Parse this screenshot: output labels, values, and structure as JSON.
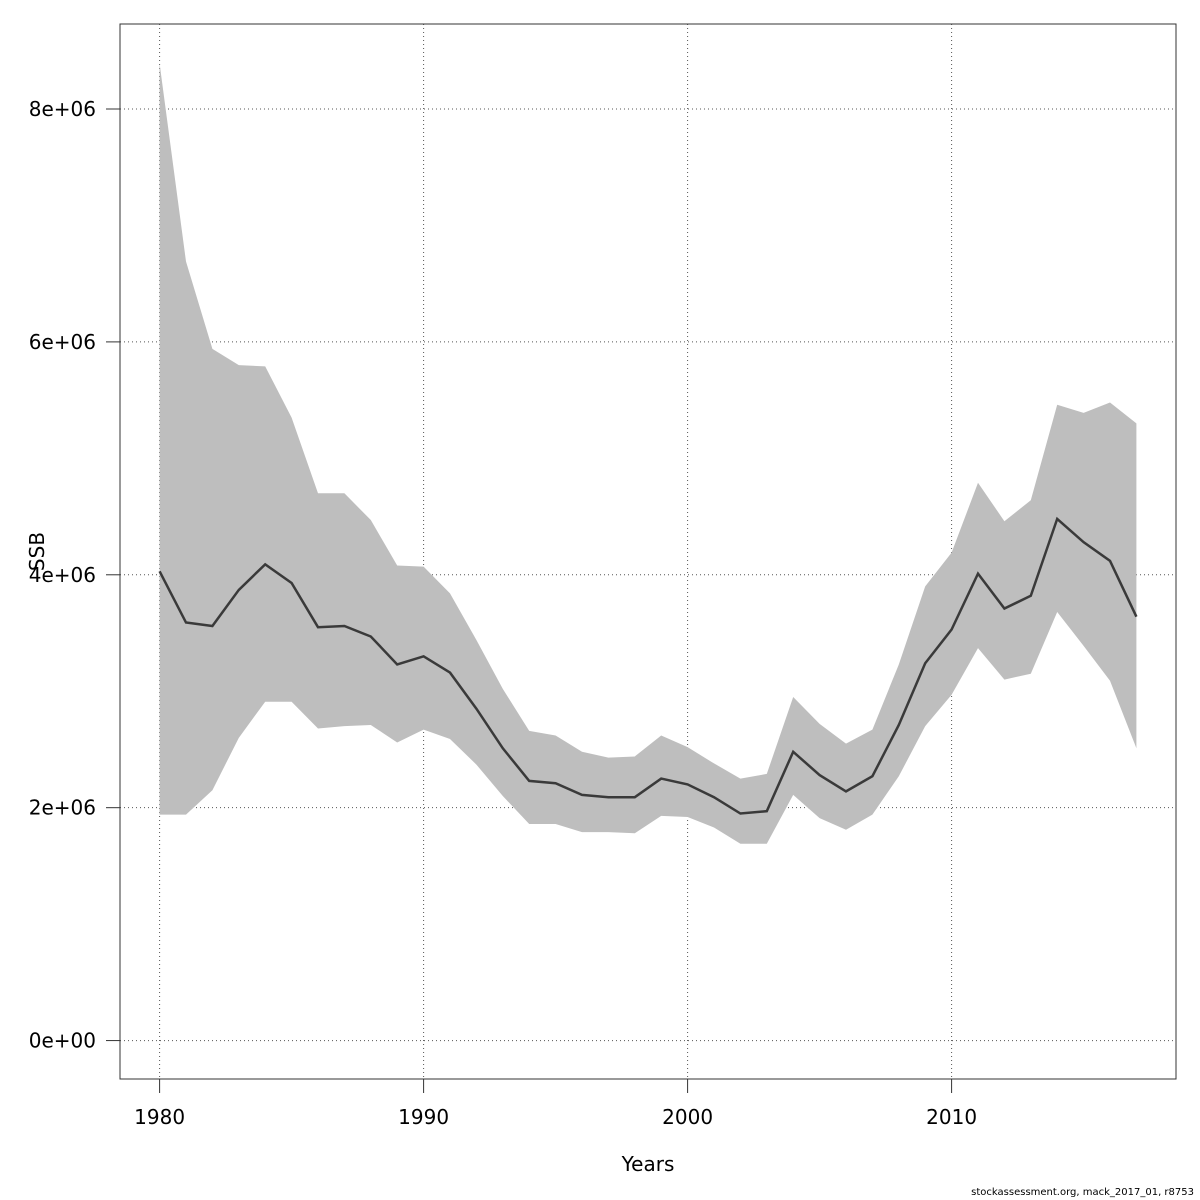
{
  "chart_data": {
    "type": "area",
    "xlabel": "Years",
    "ylabel": "SSB",
    "xlim": [
      1978.5,
      2018.5
    ],
    "ylim": [
      -330000,
      8730000
    ],
    "x_ticks": [
      1980,
      1990,
      2000,
      2010
    ],
    "y_ticks": [
      {
        "value": 0,
        "label": "0e+00"
      },
      {
        "value": 2000000,
        "label": "2e+06"
      },
      {
        "value": 4000000,
        "label": "4e+06"
      },
      {
        "value": 6000000,
        "label": "6e+06"
      },
      {
        "value": 8000000,
        "label": "8e+06"
      }
    ],
    "grid": true,
    "colors": {
      "band": "#bebebe",
      "line": "#3a3a3a",
      "grid": "#555555"
    },
    "x": [
      1980,
      1981,
      1982,
      1983,
      1984,
      1985,
      1986,
      1987,
      1988,
      1989,
      1990,
      1991,
      1992,
      1993,
      1994,
      1995,
      1996,
      1997,
      1998,
      1999,
      2000,
      2001,
      2002,
      2003,
      2004,
      2005,
      2006,
      2007,
      2008,
      2009,
      2010,
      2011,
      2012,
      2013,
      2014,
      2015,
      2016,
      2017
    ],
    "series": [
      {
        "values": [
          4030000,
          3590000,
          3560000,
          3870000,
          4090000,
          3930000,
          3550000,
          3560000,
          3470000,
          3230000,
          3300000,
          3160000,
          2850000,
          2510000,
          2230000,
          2210000,
          2110000,
          2090000,
          2090000,
          2250000,
          2200000,
          2090000,
          1950000,
          1970000,
          2480000,
          2280000,
          2140000,
          2270000,
          2710000,
          3240000,
          3530000,
          4010000,
          3710000,
          3820000,
          4480000,
          4280000,
          4120000,
          3640000
        ]
      },
      {
        "values": [
          8390000,
          6690000,
          5940000,
          5800000,
          5790000,
          5350000,
          4700000,
          4700000,
          4470000,
          4080000,
          4070000,
          3840000,
          3440000,
          3020000,
          2660000,
          2620000,
          2480000,
          2430000,
          2440000,
          2620000,
          2520000,
          2380000,
          2250000,
          2290000,
          2950000,
          2720000,
          2550000,
          2670000,
          3230000,
          3900000,
          4190000,
          4790000,
          4460000,
          4640000,
          5460000,
          5390000,
          5480000,
          5300000
        ]
      },
      {
        "values": [
          1940000,
          1940000,
          2150000,
          2600000,
          2910000,
          2910000,
          2680000,
          2700000,
          2710000,
          2560000,
          2670000,
          2590000,
          2370000,
          2100000,
          1860000,
          1860000,
          1790000,
          1790000,
          1780000,
          1930000,
          1920000,
          1830000,
          1690000,
          1690000,
          2110000,
          1910000,
          1810000,
          1940000,
          2270000,
          2700000,
          2970000,
          3370000,
          3100000,
          3150000,
          3680000,
          3390000,
          3090000,
          2510000
        ]
      }
    ]
  },
  "footer": "stockassessment.org, mack_2017_01, r8753"
}
